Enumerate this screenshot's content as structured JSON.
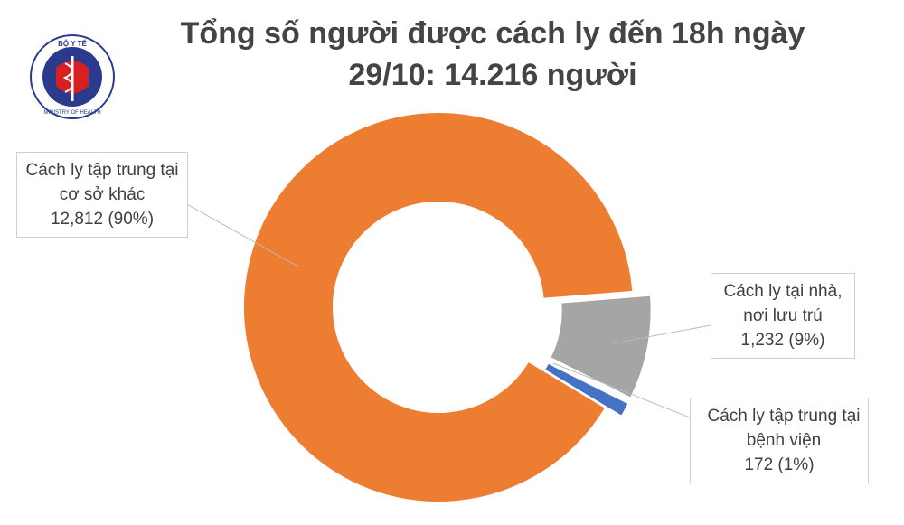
{
  "logo": {
    "top_text": "BỘ Y TẾ",
    "bottom_text": "MINISTRY OF HEALTH"
  },
  "chart_data": {
    "type": "donut",
    "title": "Tổng số người được cách ly đến 18h ngày 29/10: 14.216 người",
    "categories": [
      "Cách ly tập trung tại cơ sở khác",
      "Cách ly tại nhà, nơi lưu trú",
      "Cách ly tập trung tại bệnh viện"
    ],
    "values": [
      12812,
      1232,
      172
    ],
    "value_labels": [
      "12,812 (90%)",
      "1,232 (9%)",
      "172 (1%)"
    ],
    "colors": [
      "#ED7D31",
      "#A5A5A5",
      "#4472C4"
    ]
  }
}
